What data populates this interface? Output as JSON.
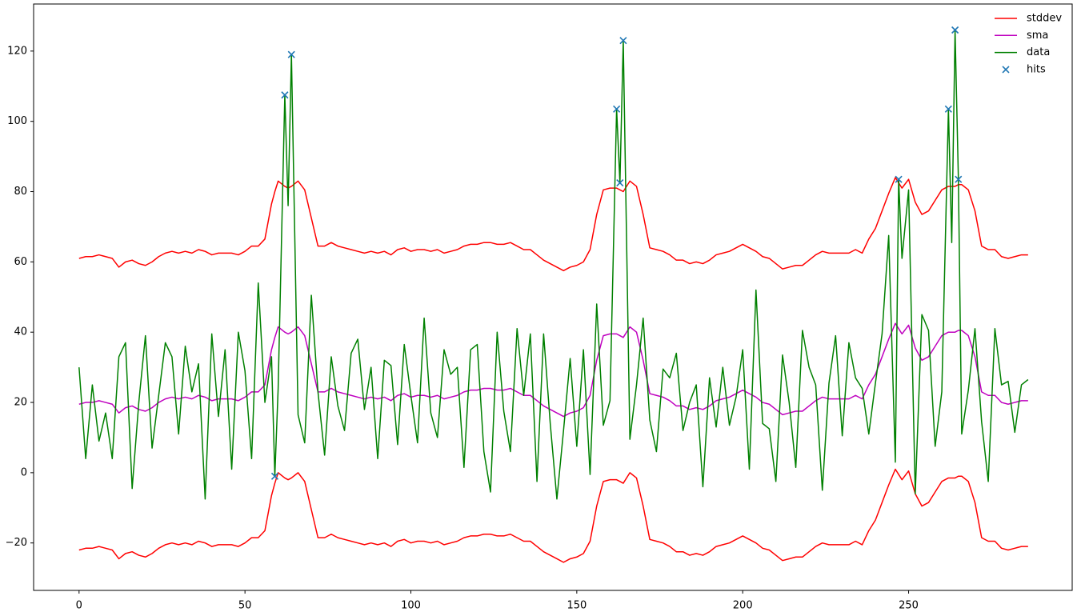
{
  "chart_data": {
    "type": "line",
    "x": [
      0,
      2,
      4,
      6,
      8,
      10,
      12,
      14,
      16,
      18,
      20,
      22,
      24,
      26,
      28,
      30,
      32,
      34,
      36,
      38,
      40,
      42,
      44,
      46,
      48,
      50,
      52,
      54,
      56,
      58,
      59,
      60,
      62,
      63,
      64,
      66,
      68,
      70,
      72,
      74,
      76,
      78,
      80,
      82,
      84,
      86,
      88,
      90,
      92,
      94,
      96,
      98,
      100,
      102,
      104,
      106,
      108,
      110,
      112,
      114,
      116,
      118,
      120,
      122,
      124,
      126,
      128,
      130,
      132,
      134,
      136,
      138,
      140,
      142,
      144,
      146,
      148,
      150,
      152,
      154,
      156,
      158,
      160,
      162,
      163,
      164,
      166,
      168,
      170,
      172,
      174,
      176,
      178,
      180,
      182,
      184,
      186,
      188,
      190,
      192,
      194,
      196,
      198,
      200,
      202,
      204,
      206,
      208,
      210,
      212,
      214,
      216,
      218,
      220,
      222,
      224,
      226,
      228,
      230,
      232,
      234,
      236,
      238,
      240,
      242,
      244,
      246,
      247,
      248,
      250,
      252,
      254,
      256,
      258,
      260,
      262,
      263,
      264,
      265,
      266,
      268,
      270,
      272,
      274,
      276,
      278,
      280,
      282,
      284,
      286
    ],
    "series": [
      {
        "name": "stddev",
        "color": "#ff0000",
        "values": [
          61,
          61.5,
          61.5,
          62,
          61.5,
          61,
          58.5,
          60,
          60.5,
          59.5,
          59,
          60,
          61.5,
          62.5,
          63,
          62.5,
          63,
          62.5,
          63.5,
          63,
          62,
          62.5,
          62.5,
          62.5,
          62,
          63,
          64.5,
          64.5,
          66.5,
          76.5,
          80,
          83,
          81.5,
          81,
          81.5,
          83,
          80.5,
          72.5,
          64.5,
          64.5,
          65.5,
          64.5,
          64,
          63.5,
          63,
          62.5,
          63,
          62.5,
          63,
          62,
          63.5,
          64,
          63,
          63.5,
          63.5,
          63,
          63.5,
          62.5,
          63,
          63.5,
          64.5,
          65,
          65,
          65.5,
          65.5,
          65,
          65,
          65.5,
          64.5,
          63.5,
          63.5,
          62,
          60.5,
          59.5,
          58.5,
          57.5,
          58.5,
          59,
          60,
          63.5,
          73.5,
          80.5,
          81,
          81,
          80.5,
          80,
          83,
          81.5,
          73.5,
          64,
          63.5,
          63,
          62,
          60.5,
          60.5,
          59.5,
          60,
          59.5,
          60.5,
          62,
          62.5,
          63,
          64,
          65,
          64,
          63,
          61.5,
          61,
          59.5,
          58,
          58.5,
          59,
          59,
          60.5,
          62,
          63,
          62.5,
          62.5,
          62.5,
          62.5,
          63.5,
          62.5,
          66.5,
          69.5,
          74.5,
          79.5,
          84,
          82.5,
          81,
          83.5,
          77,
          73.5,
          74.5,
          77.5,
          80.5,
          81.5,
          81.5,
          81.5,
          82,
          82,
          80.5,
          74.5,
          64.5,
          63.5,
          63.5,
          61.5,
          61,
          61.5,
          62,
          62
        ],
        "values_lower": [
          -22,
          -21.5,
          -21.5,
          -21,
          -21.5,
          -22,
          -24.5,
          -23,
          -22.5,
          -23.5,
          -24,
          -23,
          -21.5,
          -20.5,
          -20,
          -20.5,
          -20,
          -20.5,
          -19.5,
          -20,
          -21,
          -20.5,
          -20.5,
          -20.5,
          -21,
          -20,
          -18.5,
          -18.5,
          -16.5,
          -6.5,
          -3,
          0,
          -1.5,
          -2,
          -1.5,
          0,
          -2.5,
          -10.5,
          -18.5,
          -18.5,
          -17.5,
          -18.5,
          -19,
          -19.5,
          -20,
          -20.5,
          -20,
          -20.5,
          -20,
          -21,
          -19.5,
          -19,
          -20,
          -19.5,
          -19.5,
          -20,
          -19.5,
          -20.5,
          -20,
          -19.5,
          -18.5,
          -18,
          -18,
          -17.5,
          -17.5,
          -18,
          -18,
          -17.5,
          -18.5,
          -19.5,
          -19.5,
          -21,
          -22.5,
          -23.5,
          -24.5,
          -25.5,
          -24.5,
          -24,
          -23,
          -19.5,
          -9.5,
          -2.5,
          -2,
          -2,
          -2.5,
          -3,
          0,
          -1.5,
          -9.5,
          -19,
          -19.5,
          -20,
          -21,
          -22.5,
          -22.5,
          -23.5,
          -23,
          -23.5,
          -22.5,
          -21,
          -20.5,
          -20,
          -19,
          -18,
          -19,
          -20,
          -21.5,
          -22,
          -23.5,
          -25,
          -24.5,
          -24,
          -24,
          -22.5,
          -21,
          -20,
          -20.5,
          -20.5,
          -20.5,
          -20.5,
          -19.5,
          -20.5,
          -16.5,
          -13.5,
          -8.5,
          -3.5,
          1,
          -0.5,
          -2,
          0.5,
          -6,
          -9.5,
          -8.5,
          -5.5,
          -2.5,
          -1.5,
          -1.5,
          -1.5,
          -1,
          -1,
          -2.5,
          -8.5,
          -18.5,
          -19.5,
          -19.5,
          -21.5,
          -22,
          -21.5,
          -21,
          -21
        ]
      },
      {
        "name": "sma",
        "color": "#bf00bf",
        "values": [
          19.5,
          20,
          20,
          20.5,
          20,
          19.5,
          17,
          18.5,
          19,
          18,
          17.5,
          18.5,
          20,
          21,
          21.5,
          21,
          21.5,
          21,
          22,
          21.5,
          20.5,
          21,
          21,
          21,
          20.5,
          21.5,
          23,
          23,
          25,
          35,
          38.5,
          41.5,
          40,
          39.5,
          40,
          41.5,
          39,
          31,
          23,
          23,
          24,
          23,
          22.5,
          22,
          21.5,
          21,
          21.5,
          21,
          21.5,
          20.5,
          22,
          22.5,
          21.5,
          22,
          22,
          21.5,
          22,
          21,
          21.5,
          22,
          23,
          23.5,
          23.5,
          24,
          24,
          23.5,
          23.5,
          24,
          23,
          22,
          22,
          20.5,
          19,
          18,
          17,
          16,
          17,
          17.5,
          18.5,
          22,
          32,
          39,
          39.5,
          39.5,
          39,
          38.5,
          41.5,
          40,
          32,
          22.5,
          22,
          21.5,
          20.5,
          19,
          19,
          18,
          18.5,
          18,
          19,
          20.5,
          21,
          21.5,
          22.5,
          23.5,
          22.5,
          21.5,
          20,
          19.5,
          18,
          16.5,
          17,
          17.5,
          17.5,
          19,
          20.5,
          21.5,
          21,
          21,
          21,
          21,
          22,
          21,
          25,
          28,
          33,
          38,
          42.5,
          41,
          39.5,
          42,
          35.5,
          32,
          33,
          36,
          39,
          40,
          40,
          40,
          40.5,
          40.5,
          39,
          33,
          23,
          22,
          22,
          20,
          19.5,
          20,
          20.5,
          20.5
        ]
      },
      {
        "name": "data",
        "color": "#008000",
        "values": [
          30,
          4,
          25,
          9,
          17,
          4,
          33,
          37,
          -4.5,
          20,
          39,
          7,
          22,
          37,
          33,
          11,
          36,
          23,
          31,
          -7.5,
          39.5,
          16,
          35,
          1,
          40,
          29,
          4,
          54,
          20,
          33,
          -1,
          24,
          107.5,
          76,
          119,
          16.5,
          8.5,
          50.5,
          23,
          5,
          33,
          19,
          12,
          34,
          38,
          18,
          30,
          4,
          32,
          30.5,
          8,
          36.5,
          22,
          8.5,
          44,
          17,
          10,
          35,
          28,
          30,
          1.5,
          35,
          36.5,
          6,
          -5.5,
          40,
          17.5,
          6,
          41,
          22,
          39.5,
          -2.5,
          39.5,
          14,
          -7.5,
          12,
          32.5,
          7.5,
          35,
          -0.5,
          48,
          13.5,
          20.5,
          103.5,
          82.5,
          123,
          9.5,
          25,
          44,
          15,
          6,
          29.5,
          27,
          34,
          12,
          20,
          25,
          -4,
          27,
          13,
          30,
          13.5,
          21.5,
          35,
          1,
          52,
          14,
          12.5,
          -2.5,
          33.5,
          20,
          1.5,
          40.5,
          30,
          25,
          -5,
          25.5,
          39,
          10.5,
          37,
          27,
          24,
          11,
          25.5,
          39.5,
          67.5,
          3,
          83.5,
          61,
          80.5,
          -6,
          45,
          40.5,
          7.5,
          23,
          103.5,
          65.5,
          126,
          83.5,
          11,
          23.5,
          41,
          14.5,
          -2.5,
          41,
          25,
          26,
          11.5,
          25,
          26.5
        ]
      },
      {
        "name": "hits",
        "color": "#1f77b4",
        "type": "scatter",
        "marker": "x",
        "x": [
          59,
          62,
          64,
          162,
          163,
          164,
          247,
          262,
          264,
          265
        ],
        "values": [
          -1,
          107.5,
          119,
          103.5,
          82.5,
          123,
          83.5,
          103.5,
          126,
          83.5
        ]
      }
    ],
    "xlim": [
      -13.7,
      299.3
    ],
    "ylim": [
      -33.5,
      133.4
    ],
    "xticks": [
      0,
      50,
      100,
      150,
      200,
      250
    ],
    "yticks": [
      {
        "value": -20,
        "label": "−20"
      },
      0,
      20,
      40,
      60,
      80,
      100,
      120
    ],
    "legend": "upper right"
  }
}
